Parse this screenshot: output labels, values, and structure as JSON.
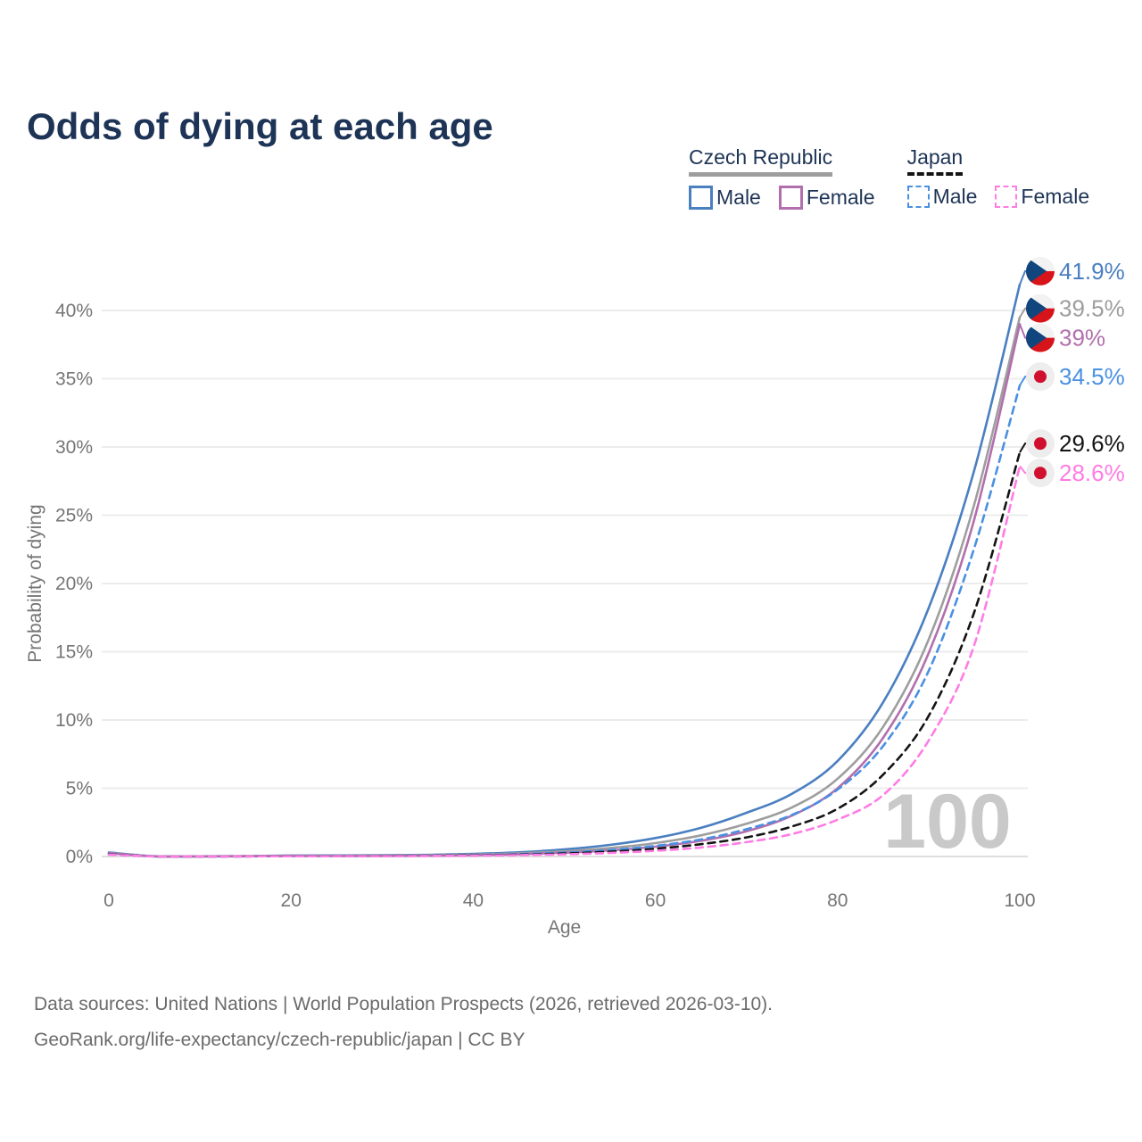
{
  "title": "Odds of dying at each age",
  "watermark": "100",
  "legend": {
    "groups": [
      {
        "name": "Czech Republic",
        "underline": "solid",
        "items": [
          {
            "label": "Male",
            "color": "#4a7fc1",
            "dash": "solid"
          },
          {
            "label": "Female",
            "color": "#b26fae",
            "dash": "solid"
          }
        ]
      },
      {
        "name": "Japan",
        "underline": "dashed",
        "items": [
          {
            "label": "Male",
            "color": "#4a90e2",
            "dash": "dashed"
          },
          {
            "label": "Female",
            "color": "#ff7ce5",
            "dash": "dashed"
          }
        ]
      }
    ]
  },
  "chart_data": {
    "type": "line",
    "xlabel": "Age",
    "ylabel": "Probability of dying",
    "x_ticks": [
      0,
      20,
      40,
      60,
      80,
      100
    ],
    "y_ticks": [
      0,
      5,
      10,
      15,
      20,
      25,
      30,
      35,
      40
    ],
    "y_tick_suffix": "%",
    "xlim": [
      0,
      100
    ],
    "ylim": [
      0,
      43
    ],
    "grid": true,
    "x": [
      0,
      5,
      10,
      15,
      20,
      25,
      30,
      35,
      40,
      45,
      50,
      55,
      60,
      65,
      70,
      75,
      80,
      85,
      90,
      95,
      100
    ],
    "series": [
      {
        "id": "czech-male",
        "name": "Czech Republic Male",
        "flag": "czech",
        "color": "#4a7fc1",
        "dash": "solid",
        "end_label": "41.9%",
        "values": [
          0.3,
          0.02,
          0.012,
          0.035,
          0.07,
          0.08,
          0.09,
          0.12,
          0.19,
          0.31,
          0.52,
          0.85,
          1.35,
          2.1,
          3.2,
          4.6,
          7.0,
          11.3,
          18.2,
          28.3,
          41.9
        ]
      },
      {
        "id": "czech-combined",
        "name": "Czech Republic (all)",
        "flag": "czech",
        "color": "#9e9e9e",
        "dash": "solid",
        "end_label": "39.5%",
        "values": [
          0.27,
          0.016,
          0.01,
          0.025,
          0.05,
          0.055,
          0.065,
          0.09,
          0.14,
          0.23,
          0.38,
          0.62,
          0.98,
          1.55,
          2.4,
          3.6,
          5.7,
          9.5,
          15.9,
          25.8,
          39.5
        ]
      },
      {
        "id": "czech-female",
        "name": "Czech Republic Female",
        "flag": "czech",
        "color": "#b26fae",
        "dash": "solid",
        "end_label": "39%",
        "values": [
          0.24,
          0.013,
          0.009,
          0.016,
          0.03,
          0.035,
          0.045,
          0.06,
          0.1,
          0.17,
          0.28,
          0.45,
          0.72,
          1.15,
          1.85,
          3.0,
          5.0,
          8.7,
          14.9,
          24.7,
          39.0
        ]
      },
      {
        "id": "japan-male",
        "name": "Japan Male",
        "flag": "japan",
        "color": "#4a90e2",
        "dash": "dashed",
        "end_label": "34.5%",
        "values": [
          0.18,
          0.01,
          0.008,
          0.016,
          0.04,
          0.045,
          0.05,
          0.07,
          0.1,
          0.17,
          0.29,
          0.47,
          0.78,
          1.25,
          2.0,
          3.05,
          4.9,
          8.1,
          13.6,
          22.6,
          34.5
        ]
      },
      {
        "id": "japan-combined",
        "name": "Japan (all)",
        "flag": "japan",
        "color": "#141414",
        "dash": "dashed",
        "end_label": "29.6%",
        "values": [
          0.16,
          0.009,
          0.006,
          0.013,
          0.03,
          0.033,
          0.04,
          0.055,
          0.08,
          0.13,
          0.22,
          0.35,
          0.57,
          0.9,
          1.4,
          2.2,
          3.5,
          6.0,
          10.3,
          17.9,
          29.6
        ]
      },
      {
        "id": "japan-female",
        "name": "Japan Female",
        "flag": "japan",
        "color": "#ff7ce5",
        "dash": "dashed",
        "end_label": "28.6%",
        "values": [
          0.14,
          0.007,
          0.005,
          0.01,
          0.02,
          0.023,
          0.028,
          0.04,
          0.06,
          0.1,
          0.16,
          0.26,
          0.42,
          0.66,
          1.05,
          1.65,
          2.7,
          4.5,
          8.5,
          15.5,
          28.6
        ]
      }
    ],
    "colors": {
      "grid": "#ececec",
      "baseline": "#dedede",
      "axis_text": "#757575",
      "watermark": "#c9c9c9",
      "czech_flag_blue": "#11457e",
      "czech_flag_red": "#d7141a",
      "czech_flag_white": "#f2f2f2",
      "japan_flag_bg": "#ededed",
      "japan_flag_red": "#d0102e"
    },
    "legend_position": "top-right"
  },
  "footer": {
    "line1": "Data sources: United Nations | World Population Prospects (2026, retrieved 2026-03-10).",
    "line2": "GeoRank.org/life-expectancy/czech-republic/japan | CC BY"
  }
}
